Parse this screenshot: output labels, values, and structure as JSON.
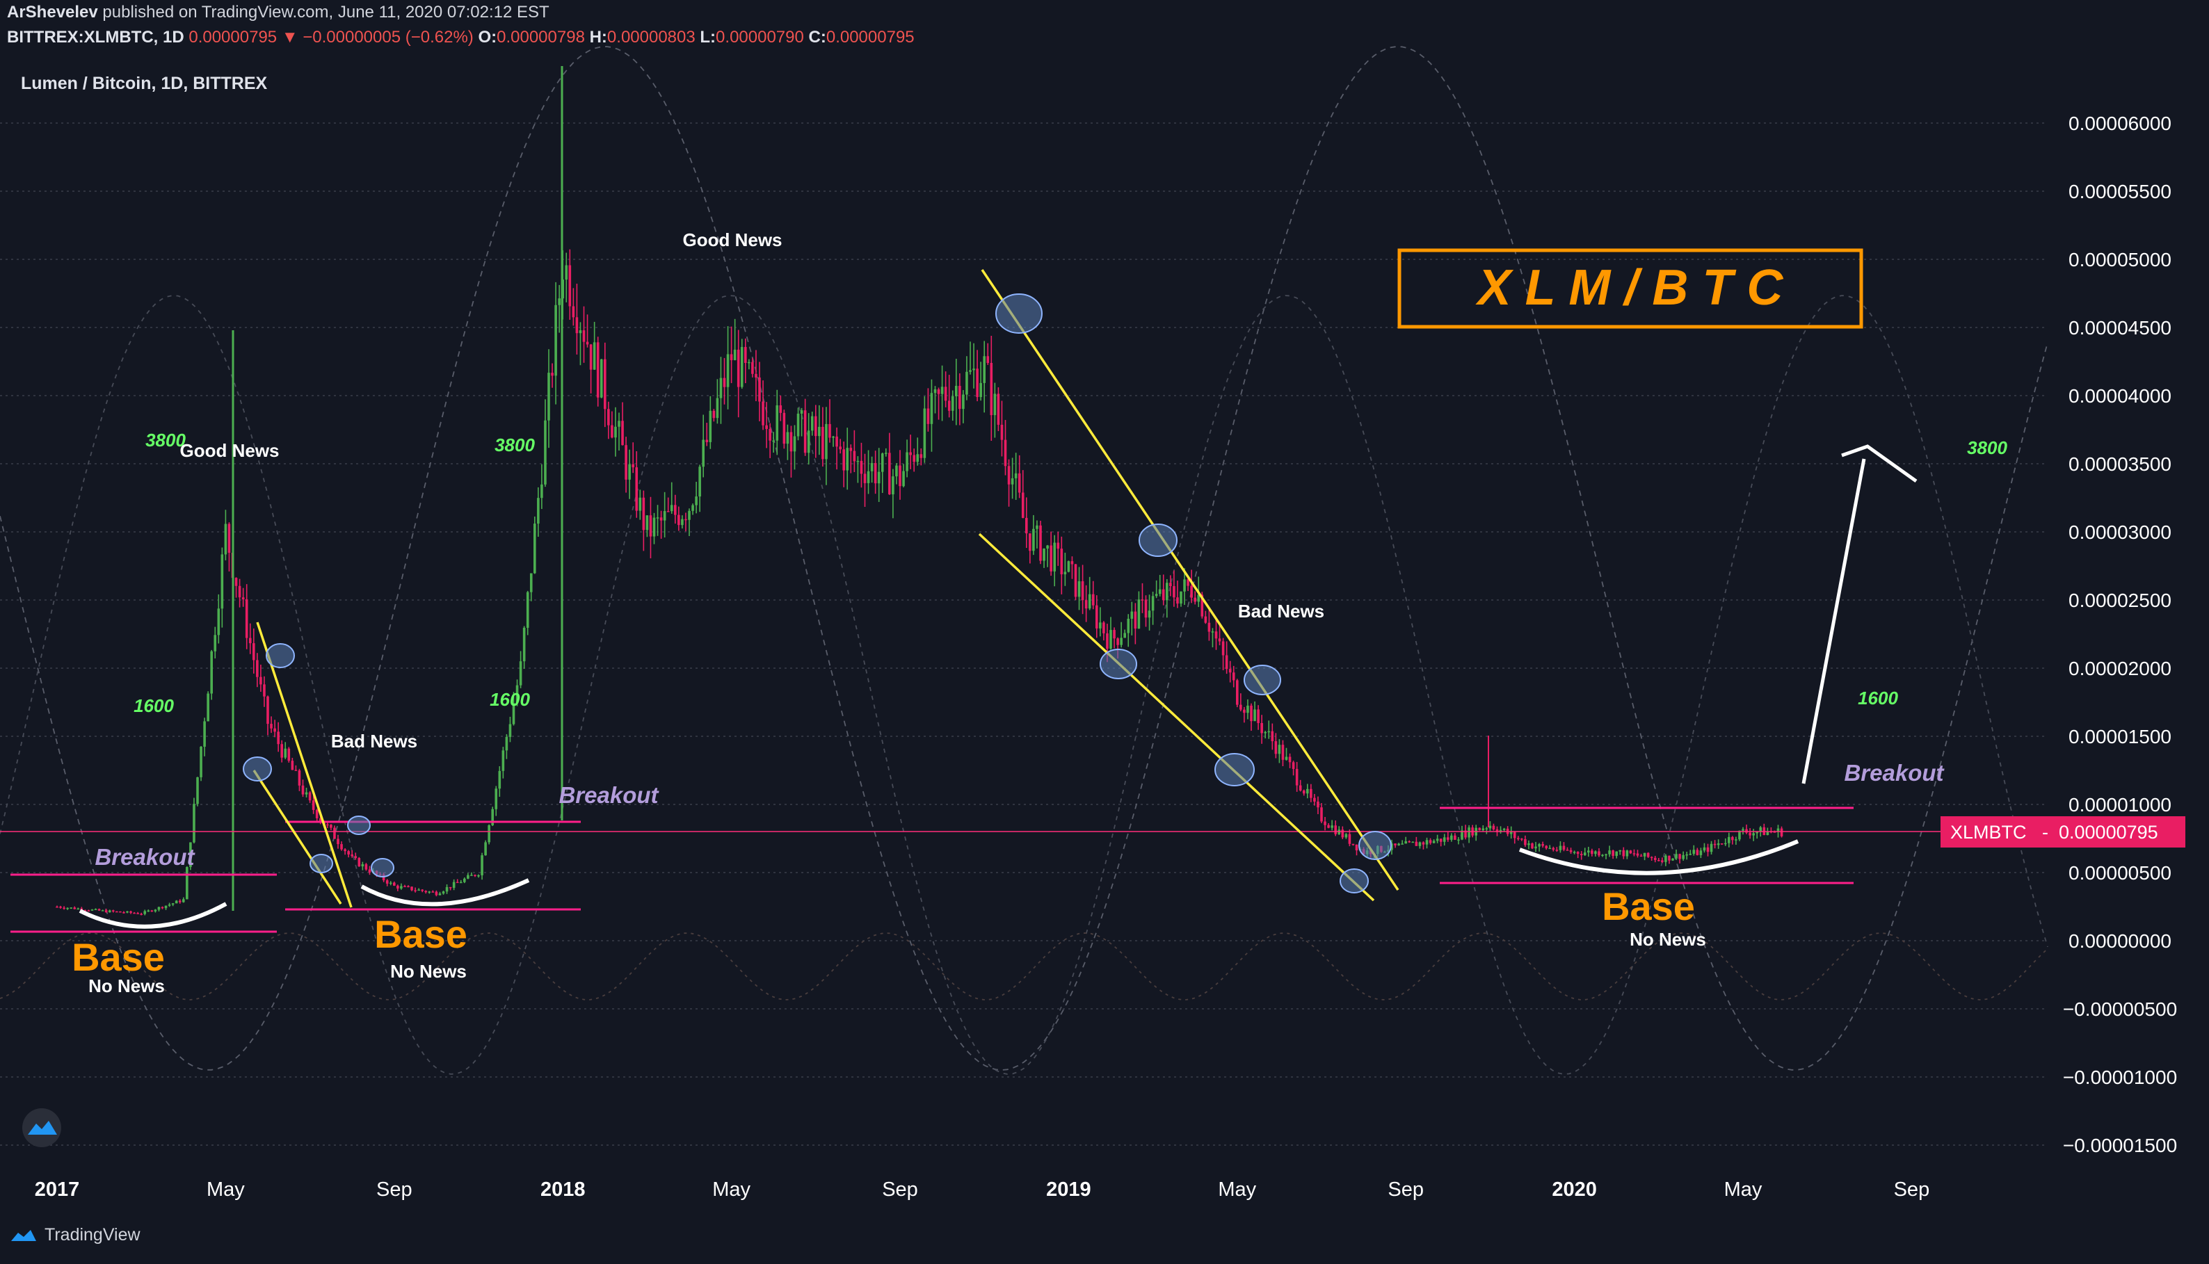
{
  "header": {
    "author": "ArShevelev",
    "published": "published on TradingView.com, June 11, 2020 07:02:12 EST",
    "symbol": "BITTREX:XLMBTC, 1D",
    "last": "0.00000795",
    "change": "−0.00000005 (−0.62%)",
    "o_label": "O:",
    "o": "0.00000798",
    "h_label": "H:",
    "h": "0.00000803",
    "l_label": "L:",
    "l": "0.00000790",
    "c_label": "C:",
    "c": "0.00000795"
  },
  "chart_title": "Lumen / Bitcoin, 1D, BITTREX",
  "big_title": "X L M / B T C",
  "price_tag": {
    "symbol": "XLMBTC",
    "value": "0.00000795"
  },
  "footer_brand": "TradingView",
  "colors": {
    "background": "#131722",
    "up": "#26a69a",
    "down": "#e91e63",
    "up_candle": "#4caf50",
    "trendline": "#ffeb3b",
    "level": "#ff1f8a",
    "base_text": "#ff9800",
    "breakout_text": "#b39ddb",
    "cycle_label": "#66ff66",
    "title_frame": "#ff9800"
  },
  "annotations": {
    "good_news": "Good News",
    "bad_news": "Bad News",
    "breakout": "Breakout",
    "base": "Base",
    "no_news": "No News",
    "cycle_short": "1600",
    "cycle_long": "3800"
  },
  "chart_data": {
    "type": "line",
    "title": "Lumen / Bitcoin, 1D, BITTREX",
    "y_axis_ticks": [
      "0.00006000",
      "0.00005500",
      "0.00005000",
      "0.00004500",
      "0.00004000",
      "0.00003500",
      "0.00003000",
      "0.00002500",
      "0.00002000",
      "0.00001500",
      "0.00001000",
      "0.00000500",
      "0.00000000",
      "−0.00000500",
      "−0.00001000",
      "−0.00001500"
    ],
    "x_axis_ticks": [
      "2017",
      "May",
      "Sep",
      "2018",
      "May",
      "Sep",
      "2019",
      "May",
      "Sep",
      "2020",
      "May",
      "Sep"
    ],
    "ylim": [
      -1.65e-05,
      6.45e-05
    ],
    "x": [
      "2017-01",
      "2017-02",
      "2017-03",
      "2017-04",
      "2017-05",
      "2017-06",
      "2017-07",
      "2017-08",
      "2017-09",
      "2017-10",
      "2017-11",
      "2017-12",
      "2018-01",
      "2018-02",
      "2018-03",
      "2018-04",
      "2018-05",
      "2018-06",
      "2018-07",
      "2018-08",
      "2018-09",
      "2018-10",
      "2018-11",
      "2018-12",
      "2019-01",
      "2019-02",
      "2019-03",
      "2019-04",
      "2019-05",
      "2019-06",
      "2019-07",
      "2019-08",
      "2019-09",
      "2019-10",
      "2019-11",
      "2019-12",
      "2020-01",
      "2020-02",
      "2020-03",
      "2020-04",
      "2020-05",
      "2020-06"
    ],
    "series": [
      {
        "values": [
          2.5e-06,
          2.2e-06,
          2e-06,
          3e-06,
          3e-05,
          1.6e-05,
          1e-05,
          6e-06,
          4e-06,
          3.5e-06,
          5e-06,
          2e-05,
          5e-05,
          4e-05,
          3e-05,
          3.2e-05,
          4.3e-05,
          3.8e-05,
          3.7e-05,
          3.5e-05,
          3.4e-05,
          4e-05,
          4.2e-05,
          3e-05,
          2.7e-05,
          2.2e-05,
          2.5e-05,
          2.6e-05,
          1.8e-05,
          1.4e-05,
          9e-06,
          6.5e-06,
          7e-06,
          7.5e-06,
          8.5e-06,
          7e-06,
          6.5e-06,
          6.5e-06,
          6e-06,
          6.5e-06,
          8e-06,
          8e-06
        ]
      }
    ]
  }
}
